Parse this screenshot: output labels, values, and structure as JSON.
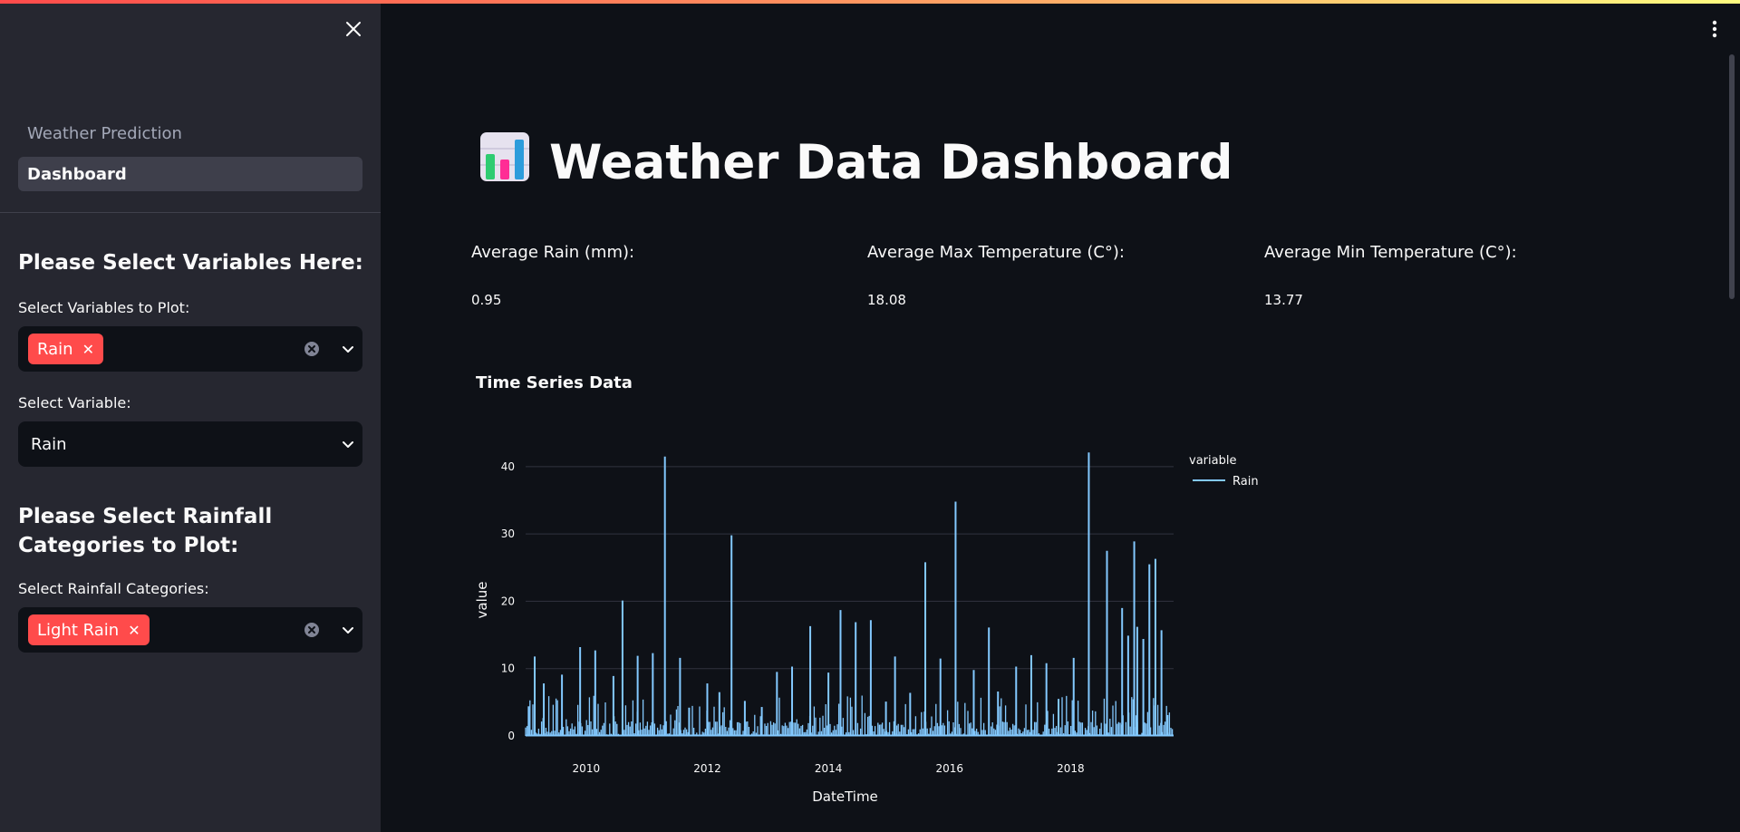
{
  "sidebar": {
    "nav": [
      {
        "label": "Weather Prediction",
        "active": false
      },
      {
        "label": "Dashboard",
        "active": true
      }
    ],
    "section1_heading": "Please Select Variables Here:",
    "plot_vars_label": "Select Variables to Plot:",
    "plot_vars_selected": [
      "Rain"
    ],
    "variable_label": "Select Variable:",
    "variable_value": "Rain",
    "section2_heading": "Please Select Rainfall Categories to Plot:",
    "categories_label": "Select Rainfall Categories:",
    "categories_selected": [
      "Light Rain"
    ]
  },
  "main": {
    "title": "Weather Data Dashboard",
    "title_icon": "bar-chart-emoji",
    "metrics": [
      {
        "label": "Average Rain (mm):",
        "value": "0.95"
      },
      {
        "label": "Average Max Temperature (C°):",
        "value": "18.08"
      },
      {
        "label": "Average Min Temperature (C°):",
        "value": "13.77"
      }
    ],
    "chart_heading": "Time Series Data"
  },
  "colors": {
    "accent": "#ff4b4b",
    "sidebar_bg": "#262730",
    "main_bg": "#0e1117",
    "series_line": "#83c9ff"
  },
  "chart_data": {
    "type": "line",
    "xlabel": "DateTime",
    "ylabel": "value",
    "legend_title": "variable",
    "legend_position": "top-right",
    "x_ticks": [
      "2010",
      "2012",
      "2014",
      "2016",
      "2018"
    ],
    "y_ticks": [
      "0",
      "10",
      "20",
      "30",
      "40"
    ],
    "xlim": [
      2009.0,
      2019.7
    ],
    "ylim": [
      0,
      42
    ],
    "grid": true,
    "series": [
      {
        "name": "Rain",
        "color": "#83c9ff",
        "x": [
          2009.05,
          2009.15,
          2009.3,
          2009.6,
          2009.9,
          2010.15,
          2010.45,
          2010.6,
          2010.85,
          2011.1,
          2011.3,
          2011.55,
          2011.7,
          2012.0,
          2012.2,
          2012.4,
          2012.62,
          2012.9,
          2013.15,
          2013.4,
          2013.7,
          2014.0,
          2014.2,
          2014.45,
          2014.7,
          2014.95,
          2015.1,
          2015.35,
          2015.6,
          2015.85,
          2016.1,
          2016.4,
          2016.65,
          2016.8,
          2017.1,
          2017.35,
          2017.6,
          2017.8,
          2018.05,
          2018.3,
          2018.6,
          2018.85,
          2018.95,
          2019.05,
          2019.1,
          2019.2,
          2019.3,
          2019.4,
          2019.5,
          2019.6
        ],
        "y": [
          4.4,
          11.8,
          7.8,
          9.1,
          13.2,
          12.7,
          8.9,
          20.1,
          11.9,
          12.3,
          41.5,
          11.6,
          4.2,
          7.8,
          6.5,
          29.8,
          5.2,
          4.3,
          9.5,
          10.3,
          16.3,
          9.4,
          18.7,
          16.9,
          17.2,
          5.1,
          11.8,
          6.4,
          25.8,
          11.5,
          34.8,
          9.8,
          16.1,
          6.6,
          10.3,
          12.0,
          10.8,
          5.5,
          11.6,
          42.1,
          27.5,
          19.0,
          14.9,
          28.9,
          16.2,
          14.4,
          25.5,
          26.3,
          15.7,
          3.1
        ]
      }
    ]
  }
}
